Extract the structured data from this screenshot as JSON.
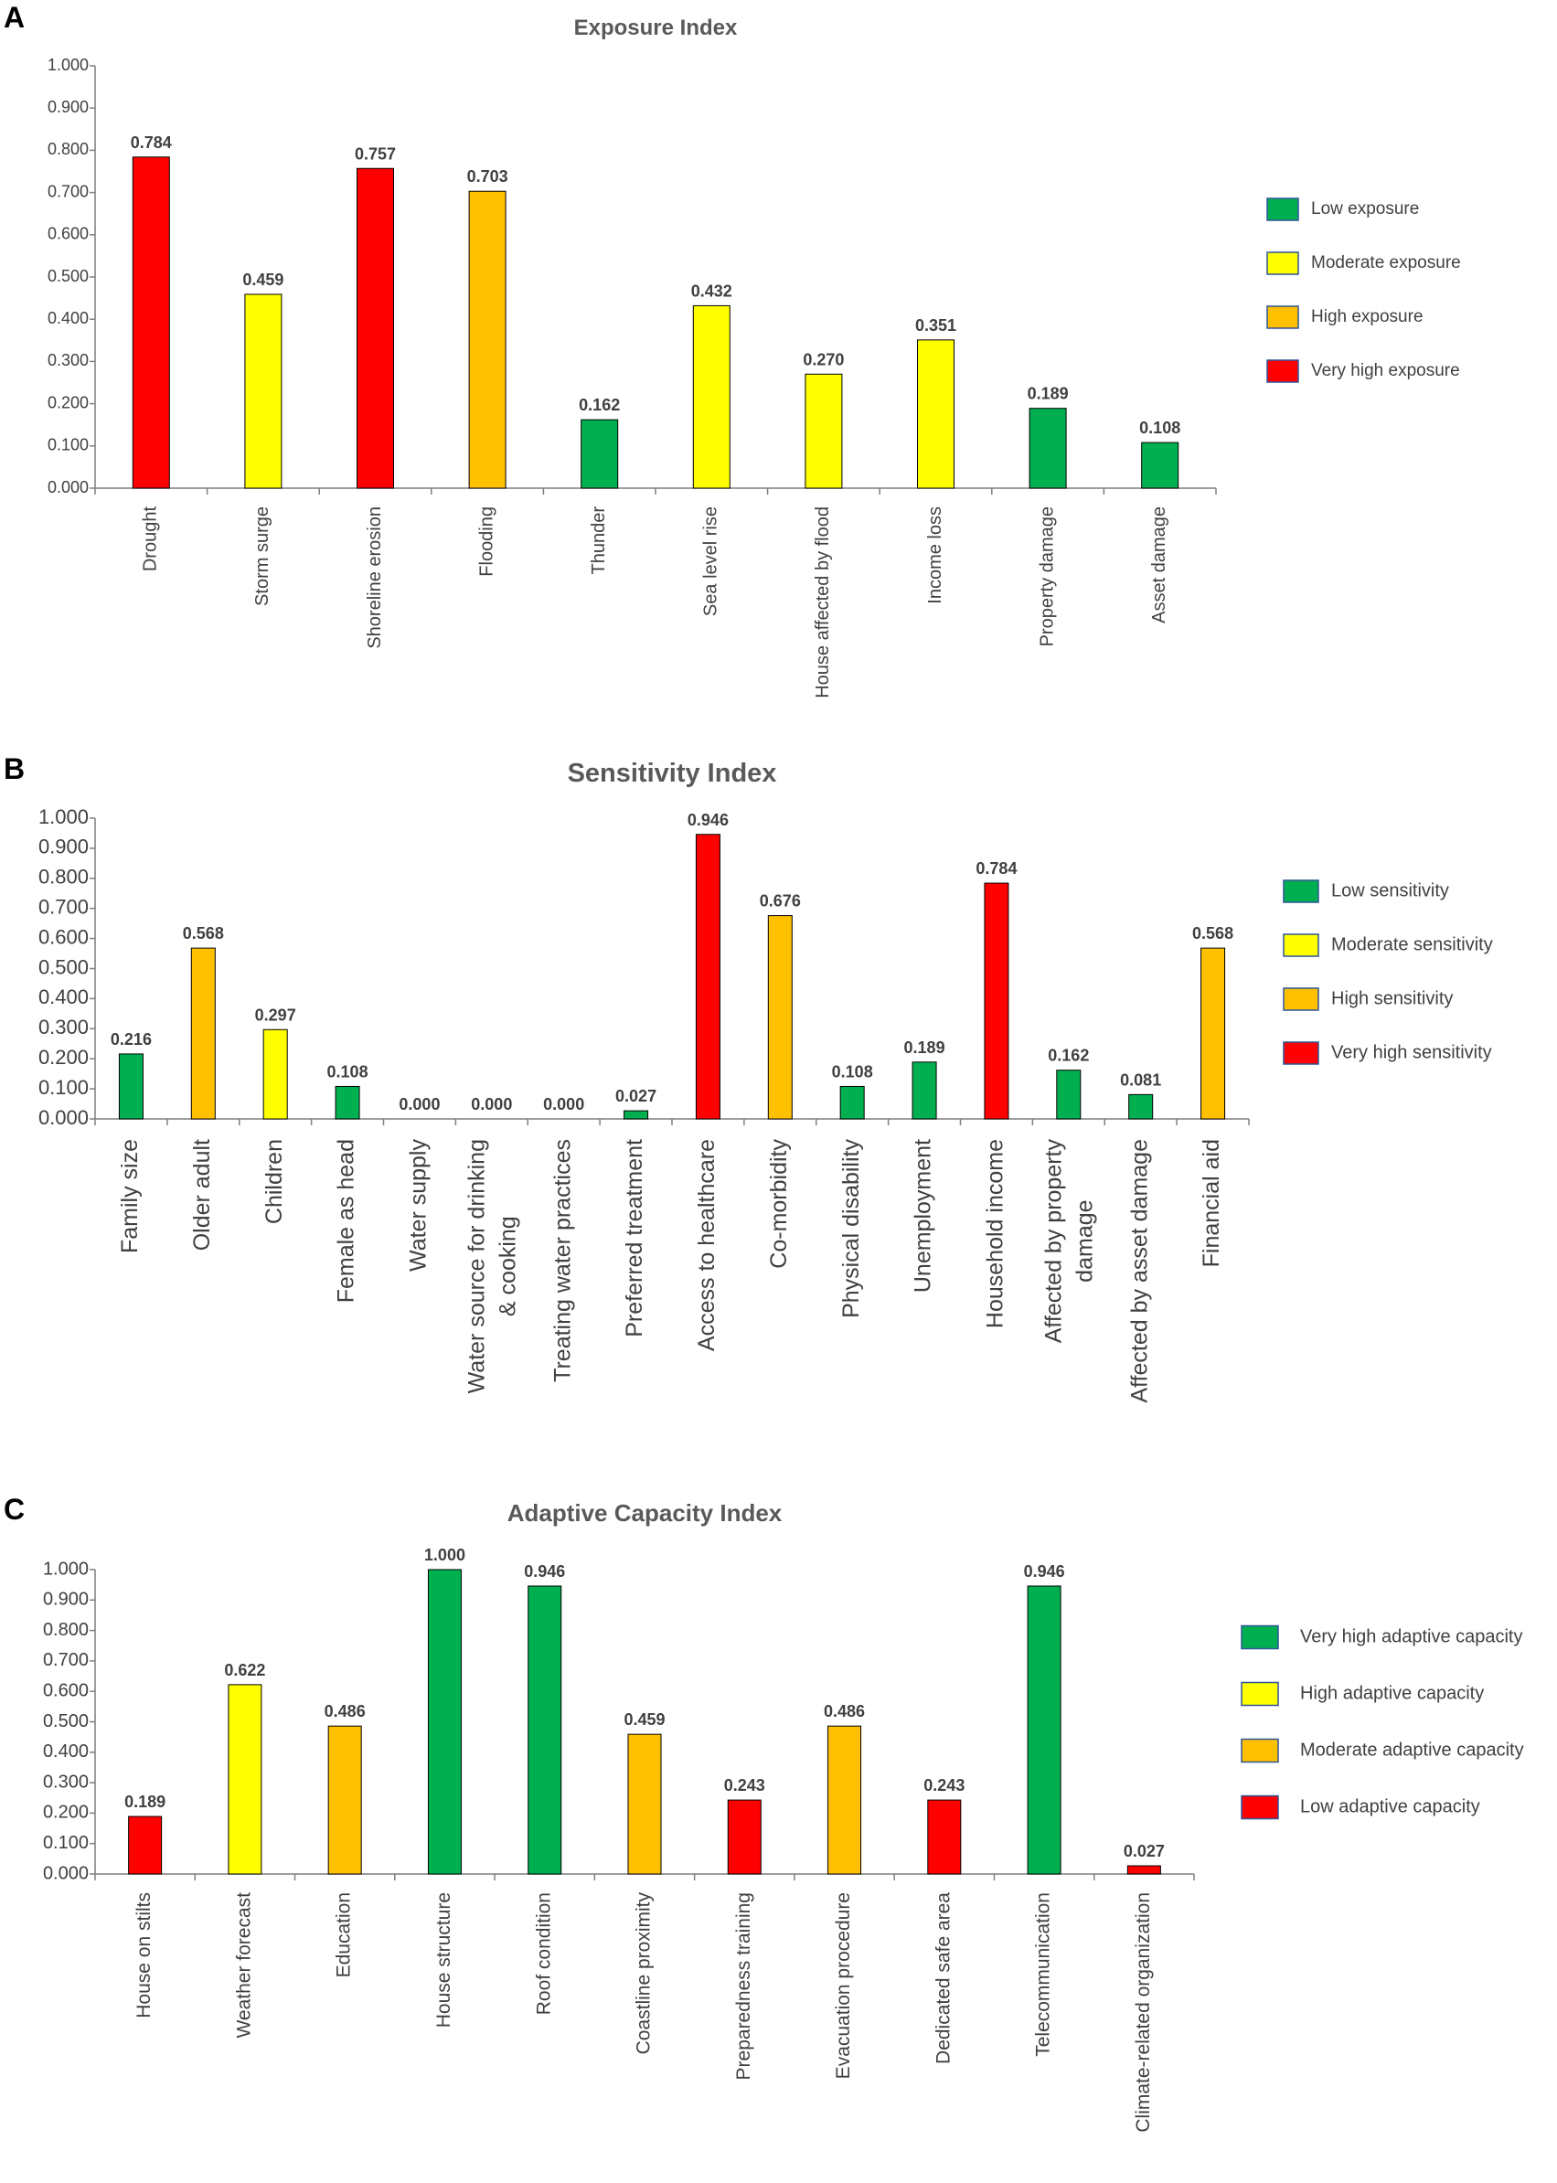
{
  "colors": {
    "low": "#00b050",
    "moderate": "#ffff00",
    "high": "#ffc000",
    "very_high": "#ff0000",
    "axis": "#7f7f7f",
    "text": "#404040",
    "title": "#595959",
    "bar_border": "#000000"
  },
  "chart_data": [
    {
      "panel": "A",
      "type": "bar",
      "title": "Exposure Index",
      "xlabel": "",
      "ylabel": "",
      "ylim": [
        0,
        1
      ],
      "yticks": [
        "0.000",
        "0.100",
        "0.200",
        "0.300",
        "0.400",
        "0.500",
        "0.600",
        "0.700",
        "0.800",
        "0.900",
        "1.000"
      ],
      "categories": [
        "Drought",
        "Storm surge",
        "Shoreline erosion",
        "Flooding",
        "Thunder",
        "Sea level rise",
        "House affected by flood",
        "Income loss",
        "Property damage",
        "Asset damage"
      ],
      "values": [
        0.784,
        0.459,
        0.757,
        0.703,
        0.162,
        0.432,
        0.27,
        0.351,
        0.189,
        0.108
      ],
      "value_labels": [
        "0.784",
        "0.459",
        "0.757",
        "0.703",
        "0.162",
        "0.432",
        "0.270",
        "0.351",
        "0.189",
        "0.108"
      ],
      "levels": [
        "very_high",
        "moderate",
        "very_high",
        "high",
        "low",
        "moderate",
        "moderate",
        "moderate",
        "low",
        "low"
      ],
      "legend": [
        {
          "label": "Low exposure",
          "level": "low"
        },
        {
          "label": "Moderate exposure",
          "level": "moderate"
        },
        {
          "label": "High exposure",
          "level": "high"
        },
        {
          "label": "Very high exposure",
          "level": "very_high"
        }
      ],
      "legend_position": "right",
      "grid": false
    },
    {
      "panel": "B",
      "type": "bar",
      "title": "Sensitivity Index",
      "xlabel": "",
      "ylabel": "",
      "ylim": [
        0,
        1
      ],
      "yticks": [
        "0.000",
        "0.100",
        "0.200",
        "0.300",
        "0.400",
        "0.500",
        "0.600",
        "0.700",
        "0.800",
        "0.900",
        "1.000"
      ],
      "categories": [
        "Family size",
        "Older adult",
        "Children",
        "Female as head",
        "Water supply",
        "Water source for drinking & cooking",
        "Treating water practices",
        "Preferred treatment",
        "Access to healthcare",
        "Co-morbidity",
        "Physical disability",
        "Unemployment",
        "Household income",
        "Affected by property damage",
        "Affected by asset damage",
        "Financial aid"
      ],
      "category_lines": [
        [
          "Family size"
        ],
        [
          "Older adult"
        ],
        [
          "Children"
        ],
        [
          "Female as head"
        ],
        [
          "Water supply"
        ],
        [
          "Water source for drinking",
          "& cooking"
        ],
        [
          "Treating water practices"
        ],
        [
          "Preferred treatment"
        ],
        [
          "Access to healthcare"
        ],
        [
          "Co-morbidity"
        ],
        [
          "Physical disability"
        ],
        [
          "Unemployment"
        ],
        [
          "Household income"
        ],
        [
          "Affected by property",
          "damage"
        ],
        [
          "Affected by asset damage"
        ],
        [
          "Financial aid"
        ]
      ],
      "values": [
        0.216,
        0.568,
        0.297,
        0.108,
        0.0,
        0.0,
        0.0,
        0.027,
        0.946,
        0.676,
        0.108,
        0.189,
        0.784,
        0.162,
        0.081,
        0.568
      ],
      "value_labels": [
        "0.216",
        "0.568",
        "0.297",
        "0.108",
        "0.000",
        "0.000",
        "0.000",
        "0.027",
        "0.946",
        "0.676",
        "0.108",
        "0.189",
        "0.784",
        "0.162",
        "0.081",
        "0.568"
      ],
      "levels": [
        "low",
        "high",
        "moderate",
        "low",
        "low",
        "low",
        "low",
        "low",
        "very_high",
        "high",
        "low",
        "low",
        "very_high",
        "low",
        "low",
        "high"
      ],
      "legend": [
        {
          "label": "Low sensitivity",
          "level": "low"
        },
        {
          "label": "Moderate sensitivity",
          "level": "moderate"
        },
        {
          "label": "High sensitivity",
          "level": "high"
        },
        {
          "label": "Very high sensitivity",
          "level": "very_high"
        }
      ],
      "legend_position": "right",
      "grid": false
    },
    {
      "panel": "C",
      "type": "bar",
      "title": "Adaptive Capacity Index",
      "xlabel": "",
      "ylabel": "",
      "ylim": [
        0,
        1
      ],
      "yticks": [
        "0.000",
        "0.100",
        "0.200",
        "0.300",
        "0.400",
        "0.500",
        "0.600",
        "0.700",
        "0.800",
        "0.900",
        "1.000"
      ],
      "categories": [
        "House on stilts",
        "Weather forecast",
        "Education",
        "House structure",
        "Roof condition",
        "Coastline proximity",
        "Preparedness training",
        "Evacuation procedure",
        "Dedicated safe area",
        "Telecommunication",
        "Climate-related organization"
      ],
      "values": [
        0.189,
        0.622,
        0.486,
        1.0,
        0.946,
        0.459,
        0.243,
        0.486,
        0.243,
        0.946,
        0.027
      ],
      "value_labels": [
        "0.189",
        "0.622",
        "0.486",
        "1.000",
        "0.946",
        "0.459",
        "0.243",
        "0.486",
        "0.243",
        "0.946",
        "0.027"
      ],
      "levels": [
        "very_high",
        "moderate",
        "high",
        "low",
        "low",
        "high",
        "very_high",
        "high",
        "very_high",
        "low",
        "very_high"
      ],
      "legend": [
        {
          "label": "Very high adaptive capacity",
          "level": "low"
        },
        {
          "label": "High adaptive capacity",
          "level": "moderate"
        },
        {
          "label": "Moderate adaptive capacity",
          "level": "high"
        },
        {
          "label": "Low adaptive capacity",
          "level": "very_high"
        }
      ],
      "legend_position": "right",
      "grid": false
    }
  ]
}
